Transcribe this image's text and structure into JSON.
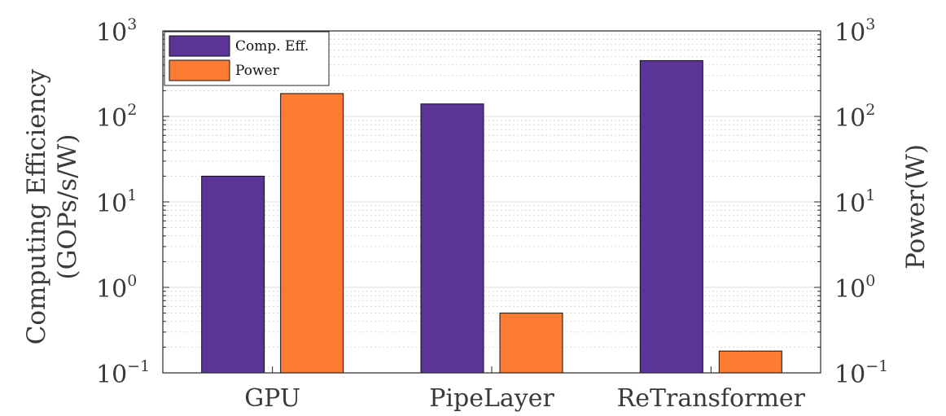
{
  "chart_data": {
    "type": "bar",
    "categories": [
      "GPU",
      "PipeLayer",
      "ReTransformer"
    ],
    "series": [
      {
        "name": "Comp. Eff.",
        "values": [
          20,
          140,
          450
        ],
        "color": "#5a3597",
        "axis": "left"
      },
      {
        "name": "Power",
        "values": [
          185,
          0.5,
          0.18
        ],
        "color": "#fd7b33",
        "axis": "right"
      }
    ],
    "y_scale": "log",
    "ylim": [
      0.1,
      1000
    ],
    "ytick_values": [
      0.1,
      1,
      10,
      100,
      1000
    ],
    "ytick_labels": [
      {
        "base": "10",
        "exp": "−1"
      },
      {
        "base": "10",
        "exp": "0"
      },
      {
        "base": "10",
        "exp": "1"
      },
      {
        "base": "10",
        "exp": "2"
      },
      {
        "base": "10",
        "exp": "3"
      }
    ],
    "ylabel_line1": "Computing Efficiency",
    "ylabel_line2": "(GOPs/s/W)",
    "ylabel_right": "Power(W)",
    "grid": true,
    "legend_position": "top-left"
  }
}
